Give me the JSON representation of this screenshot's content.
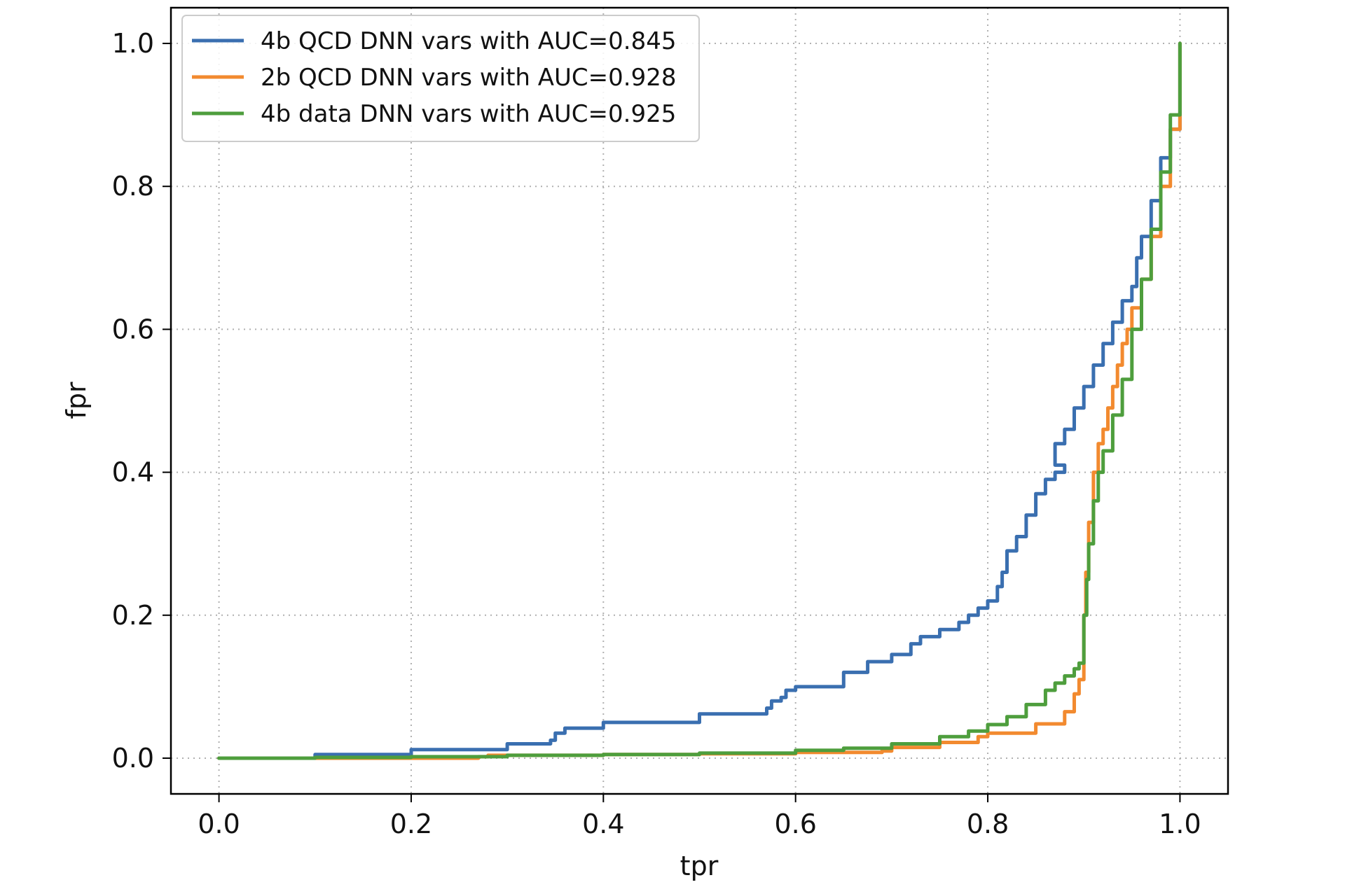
{
  "chart_data": {
    "type": "line",
    "title": "",
    "xlabel": "tpr",
    "ylabel": "fpr",
    "xlim": [
      -0.05,
      1.05
    ],
    "ylim": [
      -0.05,
      1.05
    ],
    "xticks": [
      0.0,
      0.2,
      0.4,
      0.6,
      0.8,
      1.0
    ],
    "yticks": [
      0.0,
      0.2,
      0.4,
      0.6,
      0.8,
      1.0
    ],
    "xtick_labels": [
      "0.0",
      "0.2",
      "0.4",
      "0.6",
      "0.8",
      "1.0"
    ],
    "ytick_labels": [
      "0.0",
      "0.2",
      "0.4",
      "0.6",
      "0.8",
      "1.0"
    ],
    "grid": true,
    "legend_position": "top-left",
    "series": [
      {
        "name": "4b QCD DNN vars with AUC=0.845",
        "color": "#3a6fb0",
        "x": [
          0.0,
          0.1,
          0.2,
          0.3,
          0.345,
          0.35,
          0.36,
          0.4,
          0.5,
          0.57,
          0.575,
          0.585,
          0.59,
          0.6,
          0.65,
          0.675,
          0.7,
          0.72,
          0.73,
          0.75,
          0.77,
          0.78,
          0.79,
          0.8,
          0.81,
          0.815,
          0.82,
          0.83,
          0.84,
          0.85,
          0.86,
          0.87,
          0.88,
          0.87,
          0.88,
          0.89,
          0.9,
          0.91,
          0.92,
          0.93,
          0.94,
          0.95,
          0.955,
          0.96,
          0.97,
          0.98,
          0.99,
          1.0
        ],
        "y": [
          0.0,
          0.005,
          0.012,
          0.02,
          0.025,
          0.035,
          0.042,
          0.05,
          0.062,
          0.07,
          0.08,
          0.085,
          0.095,
          0.1,
          0.12,
          0.135,
          0.145,
          0.16,
          0.17,
          0.18,
          0.19,
          0.2,
          0.21,
          0.22,
          0.24,
          0.26,
          0.29,
          0.31,
          0.34,
          0.37,
          0.39,
          0.4,
          0.41,
          0.44,
          0.46,
          0.49,
          0.52,
          0.55,
          0.58,
          0.61,
          0.64,
          0.66,
          0.7,
          0.73,
          0.78,
          0.84,
          0.88,
          1.0
        ]
      },
      {
        "name": "2b QCD DNN vars with AUC=0.928",
        "color": "#f28a2f",
        "x": [
          0.0,
          0.1,
          0.27,
          0.28,
          0.4,
          0.5,
          0.6,
          0.69,
          0.7,
          0.75,
          0.79,
          0.8,
          0.85,
          0.88,
          0.89,
          0.895,
          0.9,
          0.9,
          0.902,
          0.905,
          0.91,
          0.915,
          0.92,
          0.925,
          0.93,
          0.935,
          0.94,
          0.945,
          0.95,
          0.96,
          0.97,
          0.98,
          0.99,
          1.0
        ],
        "y": [
          0.0,
          0.0,
          0.002,
          0.004,
          0.005,
          0.006,
          0.008,
          0.01,
          0.015,
          0.022,
          0.03,
          0.035,
          0.048,
          0.065,
          0.09,
          0.11,
          0.14,
          0.2,
          0.26,
          0.33,
          0.4,
          0.44,
          0.46,
          0.49,
          0.52,
          0.55,
          0.58,
          0.6,
          0.63,
          0.67,
          0.73,
          0.8,
          0.88,
          1.0
        ]
      },
      {
        "name": "4b data DNN vars with AUC=0.925",
        "color": "#4e9e3d",
        "x": [
          0.0,
          0.1,
          0.2,
          0.3,
          0.4,
          0.5,
          0.6,
          0.65,
          0.7,
          0.75,
          0.78,
          0.8,
          0.82,
          0.84,
          0.86,
          0.87,
          0.88,
          0.89,
          0.895,
          0.9,
          0.9,
          0.903,
          0.905,
          0.91,
          0.915,
          0.92,
          0.93,
          0.94,
          0.95,
          0.96,
          0.97,
          0.98,
          0.99,
          1.0
        ],
        "y": [
          0.0,
          0.001,
          0.002,
          0.004,
          0.005,
          0.007,
          0.011,
          0.014,
          0.02,
          0.03,
          0.038,
          0.047,
          0.058,
          0.075,
          0.095,
          0.105,
          0.115,
          0.125,
          0.133,
          0.145,
          0.2,
          0.25,
          0.3,
          0.36,
          0.4,
          0.43,
          0.48,
          0.53,
          0.6,
          0.67,
          0.74,
          0.82,
          0.9,
          1.0
        ]
      }
    ]
  }
}
